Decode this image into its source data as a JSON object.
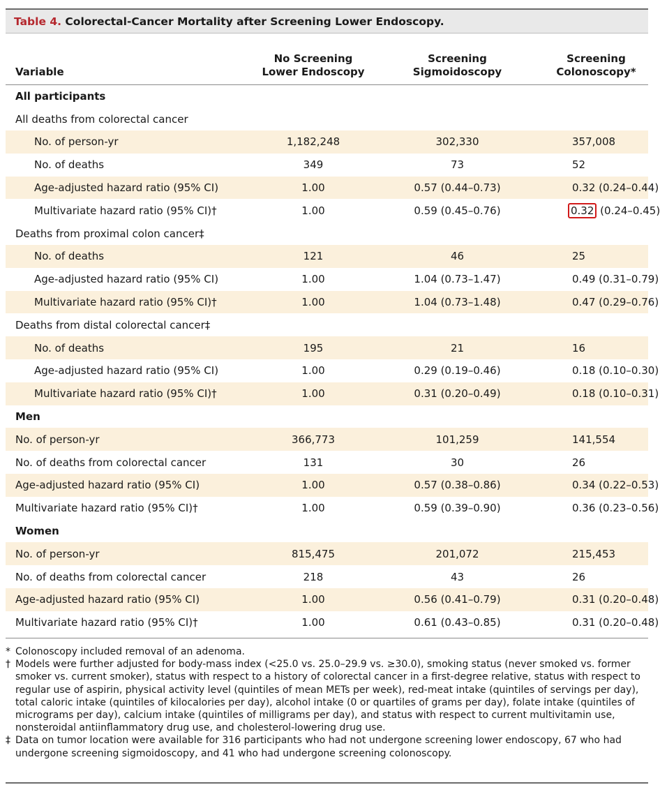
{
  "title": {
    "label": "Table 4.",
    "text": " Colorectal-Cancer Mortality after Screening Lower Endoscopy."
  },
  "columns": [
    "Variable",
    "No Screening\nLower Endoscopy",
    "Screening\nSigmoidoscopy",
    "Screening\nColonoscopy*"
  ],
  "rows": [
    {
      "label": "All participants",
      "kind": "section",
      "shade": false,
      "values": [
        "",
        "",
        ""
      ]
    },
    {
      "label": "All deaths from colorectal cancer",
      "kind": "group",
      "shade": false,
      "values": [
        "",
        "",
        ""
      ]
    },
    {
      "label": "No. of person-yr",
      "kind": "item",
      "shade": true,
      "values": [
        "1,182,248",
        "302,330",
        "357,008"
      ]
    },
    {
      "label": "No. of deaths",
      "kind": "item",
      "shade": false,
      "values": [
        "349",
        "73",
        "52"
      ]
    },
    {
      "label": "Age-adjusted hazard ratio (95% CI)",
      "kind": "item",
      "shade": true,
      "values": [
        "1.00",
        "0.57 (0.44–0.73)",
        "0.32 (0.24–0.44)"
      ]
    },
    {
      "label": "Multivariate hazard ratio (95% CI)†",
      "kind": "item",
      "shade": false,
      "values": [
        "1.00",
        "0.59 (0.45–0.76)",
        "0.32 (0.24–0.45)"
      ],
      "highlight": {
        "col": 2,
        "text": "0.32",
        "rest": " (0.24–0.45)"
      }
    },
    {
      "label": "Deaths from proximal colon cancer‡",
      "kind": "group",
      "shade": false,
      "values": [
        "",
        "",
        ""
      ]
    },
    {
      "label": "No. of deaths",
      "kind": "item",
      "shade": true,
      "values": [
        "121",
        "46",
        "25"
      ]
    },
    {
      "label": "Age-adjusted hazard ratio (95% CI)",
      "kind": "item",
      "shade": false,
      "values": [
        "1.00",
        "1.04 (0.73–1.47)",
        "0.49 (0.31–0.79)"
      ]
    },
    {
      "label": "Multivariate hazard ratio (95% CI)†",
      "kind": "item",
      "shade": true,
      "values": [
        "1.00",
        "1.04 (0.73–1.48)",
        "0.47 (0.29–0.76)"
      ]
    },
    {
      "label": "Deaths from distal colorectal cancer‡",
      "kind": "group",
      "shade": false,
      "values": [
        "",
        "",
        ""
      ]
    },
    {
      "label": "No. of deaths",
      "kind": "item",
      "shade": true,
      "values": [
        "195",
        "21",
        "16"
      ]
    },
    {
      "label": "Age-adjusted hazard ratio (95% CI)",
      "kind": "item",
      "shade": false,
      "values": [
        "1.00",
        "0.29 (0.19–0.46)",
        "0.18 (0.10–0.30)"
      ]
    },
    {
      "label": "Multivariate hazard ratio (95% CI)†",
      "kind": "item",
      "shade": true,
      "values": [
        "1.00",
        "0.31 (0.20–0.49)",
        "0.18 (0.10–0.31)"
      ]
    },
    {
      "label": "Men",
      "kind": "section",
      "shade": false,
      "values": [
        "",
        "",
        ""
      ]
    },
    {
      "label": "No. of person-yr",
      "kind": "flat",
      "shade": true,
      "values": [
        "366,773",
        "101,259",
        "141,554"
      ]
    },
    {
      "label": "No. of deaths from colorectal cancer",
      "kind": "flat",
      "shade": false,
      "values": [
        "131",
        "30",
        "26"
      ]
    },
    {
      "label": "Age-adjusted hazard ratio (95% CI)",
      "kind": "flat",
      "shade": true,
      "values": [
        "1.00",
        "0.57 (0.38–0.86)",
        "0.34 (0.22–0.53)"
      ]
    },
    {
      "label": "Multivariate hazard ratio (95% CI)†",
      "kind": "flat",
      "shade": false,
      "values": [
        "1.00",
        "0.59 (0.39–0.90)",
        "0.36 (0.23–0.56)"
      ]
    },
    {
      "label": "Women",
      "kind": "section",
      "shade": false,
      "values": [
        "",
        "",
        ""
      ]
    },
    {
      "label": "No. of person-yr",
      "kind": "flat",
      "shade": true,
      "values": [
        "815,475",
        "201,072",
        "215,453"
      ]
    },
    {
      "label": "No. of deaths from colorectal cancer",
      "kind": "flat",
      "shade": false,
      "values": [
        "218",
        "43",
        "26"
      ]
    },
    {
      "label": "Age-adjusted hazard ratio (95% CI)",
      "kind": "flat",
      "shade": true,
      "values": [
        "1.00",
        "0.56 (0.41–0.79)",
        "0.31 (0.20–0.48)"
      ]
    },
    {
      "label": "Multivariate hazard ratio (95% CI)†",
      "kind": "flat",
      "shade": false,
      "values": [
        "1.00",
        "0.61 (0.43–0.85)",
        "0.31 (0.20–0.48)"
      ]
    }
  ],
  "footnotes": [
    {
      "mark": "*",
      "text": "Colonoscopy included removal of an adenoma."
    },
    {
      "mark": "†",
      "text": "Models were further adjusted for body-mass index (<25.0 vs. 25.0–29.9 vs. ≥30.0), smoking status (never smoked vs. former smoker vs. current smoker), status with respect to a history of colorectal cancer in a first-degree relative, status with respect to regular use of aspirin, physical activity level (quintiles of mean METs per week), red-meat intake (quintiles of servings per day), total caloric intake (quintiles of kilocalories per day), alcohol intake (0 or quartiles of grams per day), folate intake (quintiles of micrograms per day), calcium intake (quintiles of milligrams per day), and status with respect to current multivitamin use, nonsteroidal antiinflammatory drug use, and cholesterol-lowering drug use."
    },
    {
      "mark": "‡",
      "text": "Data on tumor location were available for 316 participants who had not undergone screening lower endoscopy, 67 who had undergone screening sigmoidoscopy, and 41 who had undergone screening colonoscopy."
    }
  ],
  "colors": {
    "title_label": "#b5282e",
    "title_bar_bg": "#e9e9e9",
    "row_shade": "#fbf0dc",
    "highlight_box": "#d11a1a"
  }
}
